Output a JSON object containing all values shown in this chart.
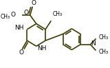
{
  "bg_color": "#ffffff",
  "line_color": "#3a3a00",
  "bond_lw": 1.2,
  "figure_size": [
    1.6,
    0.99
  ],
  "dpi": 100,
  "xlim": [
    0,
    160
  ],
  "ylim": [
    0,
    99
  ]
}
